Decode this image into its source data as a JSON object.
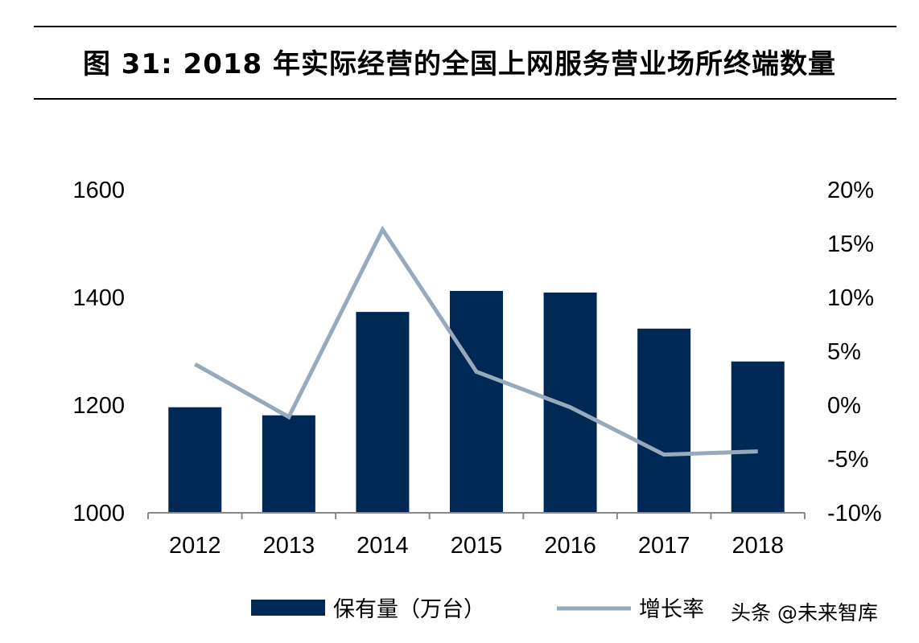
{
  "title": "图 31: 2018 年实际经营的全国上网服务营业场所终端数量",
  "watermark": "头条 @未来智库",
  "chart_data": {
    "type": "bar+line",
    "title": "图 31: 2018 年实际经营的全国上网服务营业场所终端数量",
    "categories": [
      "2012",
      "2013",
      "2014",
      "2015",
      "2016",
      "2017",
      "2018"
    ],
    "series": [
      {
        "name": "保有量（万台）",
        "type": "bar",
        "axis": "left",
        "color": "#002855",
        "values": [
          1196,
          1181,
          1373,
          1412,
          1409,
          1342,
          1281
        ]
      },
      {
        "name": "增长率",
        "type": "line",
        "axis": "right",
        "color": "#97aabb",
        "values": [
          3.8,
          -1.1,
          16.3,
          3.1,
          -0.2,
          -4.6,
          -4.3
        ]
      }
    ],
    "y_left": {
      "range": [
        1000,
        1600
      ],
      "ticks": [
        "1000",
        "1200",
        "1400",
        "1600"
      ]
    },
    "y_right": {
      "range": [
        -10,
        20
      ],
      "ticks": [
        "-10%",
        "-5%",
        "0%",
        "5%",
        "10%",
        "15%",
        "20%"
      ]
    },
    "grid": false,
    "legend": "bottom"
  }
}
